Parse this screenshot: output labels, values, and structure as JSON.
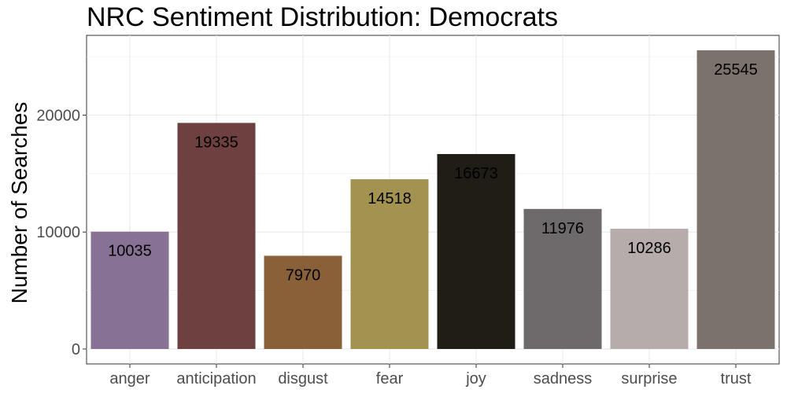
{
  "chart_data": {
    "type": "bar",
    "title": "NRC Sentiment Distribution: Democrats",
    "xlabel": "",
    "ylabel": "Number of Searches",
    "categories": [
      "anger",
      "anticipation",
      "disgust",
      "fear",
      "joy",
      "sadness",
      "surprise",
      "trust"
    ],
    "values": [
      10035,
      19335,
      7970,
      14518,
      16673,
      11976,
      10286,
      25545
    ],
    "colors": [
      "#877194",
      "#6e403f",
      "#8a6039",
      "#a39350",
      "#201d16",
      "#6e6a6b",
      "#b6acac",
      "#7c726c"
    ],
    "ylim": [
      -1277,
      26822
    ],
    "yticks": [
      0,
      10000,
      20000
    ],
    "ytick_labels": [
      "0",
      "10000",
      "20000"
    ],
    "grid": true,
    "legend": "none"
  }
}
